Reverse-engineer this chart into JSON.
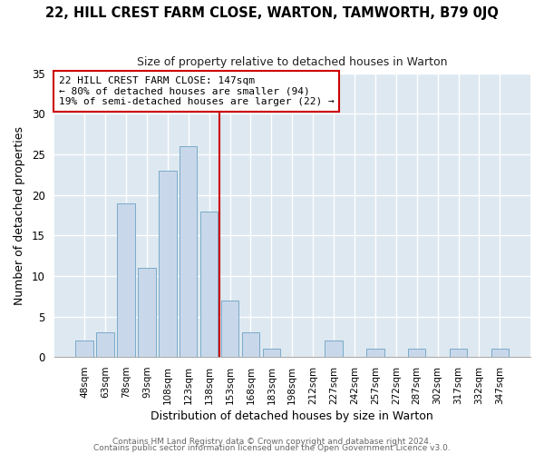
{
  "title": "22, HILL CREST FARM CLOSE, WARTON, TAMWORTH, B79 0JQ",
  "subtitle": "Size of property relative to detached houses in Warton",
  "xlabel": "Distribution of detached houses by size in Warton",
  "ylabel": "Number of detached properties",
  "bar_labels": [
    "48sqm",
    "63sqm",
    "78sqm",
    "93sqm",
    "108sqm",
    "123sqm",
    "138sqm",
    "153sqm",
    "168sqm",
    "183sqm",
    "198sqm",
    "212sqm",
    "227sqm",
    "242sqm",
    "257sqm",
    "272sqm",
    "287sqm",
    "302sqm",
    "317sqm",
    "332sqm",
    "347sqm"
  ],
  "bar_heights": [
    2,
    3,
    19,
    11,
    23,
    26,
    18,
    7,
    3,
    1,
    0,
    0,
    2,
    0,
    1,
    0,
    1,
    0,
    1,
    0,
    1
  ],
  "bar_color": "#c8d8ea",
  "bar_edge_color": "#7aaac8",
  "vline_x": 6.5,
  "vline_color": "#cc0000",
  "annotation_title": "22 HILL CREST FARM CLOSE: 147sqm",
  "annotation_line1": "← 80% of detached houses are smaller (94)",
  "annotation_line2": "19% of semi-detached houses are larger (22) →",
  "annotation_box_color": "#ffffff",
  "annotation_box_edge": "#cc0000",
  "ylim": [
    0,
    35
  ],
  "yticks": [
    0,
    5,
    10,
    15,
    20,
    25,
    30,
    35
  ],
  "footer1": "Contains HM Land Registry data © Crown copyright and database right 2024.",
  "footer2": "Contains public sector information licensed under the Open Government Licence v3.0.",
  "fig_bg_color": "#ffffff",
  "axes_bg_color": "#dde8f0",
  "grid_color": "#ffffff",
  "footer_color": "#666666"
}
